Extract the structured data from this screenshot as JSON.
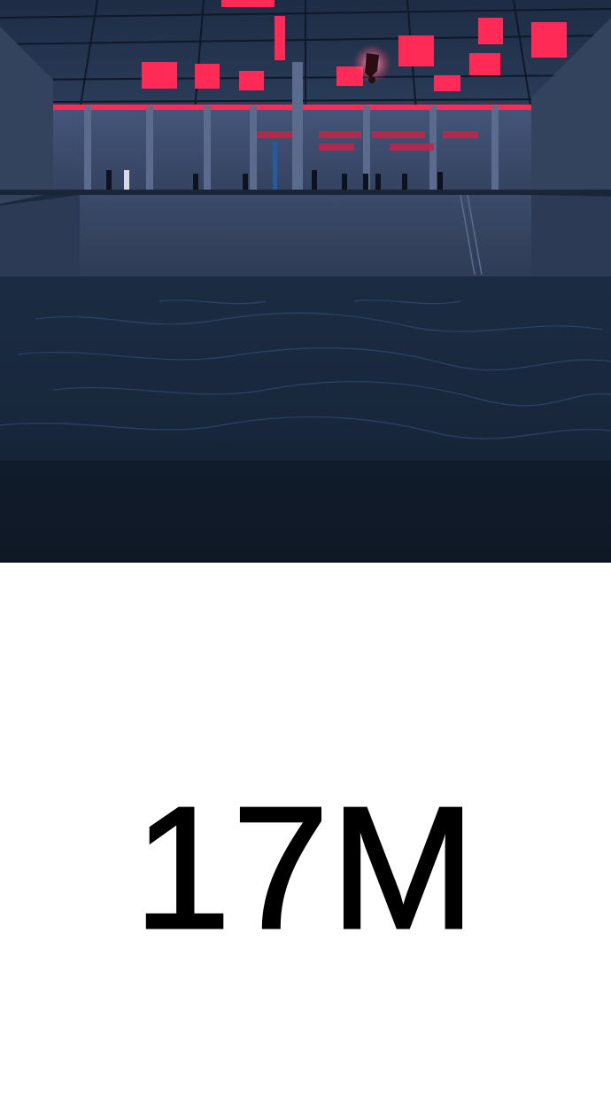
{
  "panel": {
    "scene": "warehouse-pool",
    "colors": {
      "ceiling_glow": "#ff2a55",
      "wall": "#3a4a66",
      "water": "#17263b",
      "frame": "#0a0f16"
    }
  },
  "caption": {
    "text": "17M"
  }
}
